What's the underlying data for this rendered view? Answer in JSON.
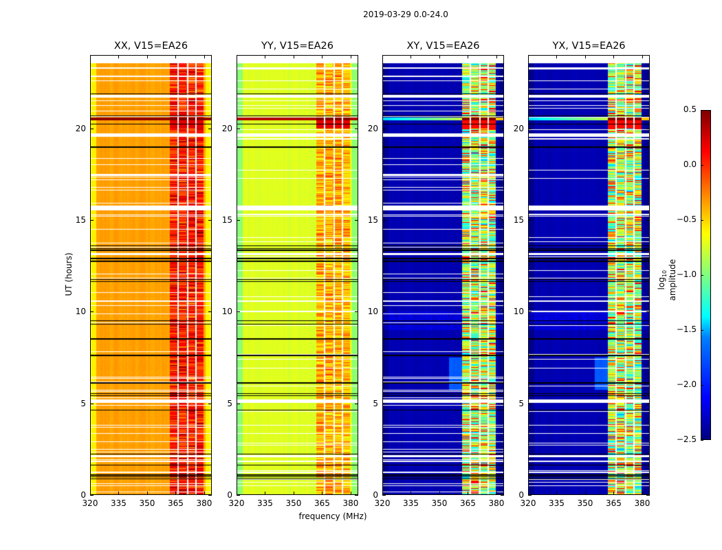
{
  "chart_data": {
    "type": "heatmap",
    "title": "2019-03-29 0.0-24.0",
    "xlabel": "frequency (MHz)",
    "ylabel": "UT (hours)",
    "xlim": [
      320,
      384
    ],
    "ylim": [
      0,
      24
    ],
    "xticks": [
      320,
      335,
      350,
      365,
      380
    ],
    "yticks": [
      0,
      5,
      10,
      15,
      20
    ],
    "panels": [
      {
        "title": "XX, V15=EA26",
        "background_level": -0.35,
        "band_level": 0.05
      },
      {
        "title": "YY, V15=EA26",
        "background_level": -0.72,
        "band_level": -0.4
      },
      {
        "title": "XY, V15=EA26",
        "background_level": -2.35,
        "band_level": -0.9
      },
      {
        "title": "YX, V15=EA26",
        "background_level": -2.35,
        "band_level": -0.9
      }
    ],
    "band_mhz": [
      362,
      380
    ],
    "band_gaps_mhz": [
      366.5,
      371.5,
      376
    ],
    "flagged_hours": [
      [
        23.6,
        24
      ],
      [
        23.3,
        23.35
      ],
      [
        22.6,
        22.65
      ],
      [
        21.7,
        21.85
      ],
      [
        21.5,
        21.55
      ],
      [
        19.55,
        19.75
      ],
      [
        15.55,
        15.8
      ],
      [
        15.2,
        15.25
      ],
      [
        13.1,
        13.2
      ],
      [
        11.8,
        11.85
      ],
      [
        10.55,
        10.6
      ],
      [
        5.0,
        5.2
      ],
      [
        3.75,
        3.8
      ],
      [
        3.3,
        3.35
      ],
      [
        2.05,
        2.15
      ],
      [
        1.75,
        1.85
      ],
      [
        1.15,
        1.25
      ],
      [
        0.45,
        0.5
      ]
    ],
    "black_line_hours": [
      21.9,
      20.7,
      20.25,
      19.0,
      13.6,
      13.45,
      13.35,
      12.9,
      12.75,
      11.75,
      11.65,
      9.5,
      9.3,
      8.5,
      7.6,
      6.1,
      5.5,
      5.4,
      4.6,
      2.2,
      1.6,
      1.05,
      0.95,
      0.85
    ],
    "colorbar": {
      "label": "log10 amplitude",
      "label_main": "log",
      "label_sub": "10",
      "label_rest": " amplitude",
      "range": [
        -2.5,
        0.5
      ],
      "colormap": "jet",
      "ticks": [
        "0.5",
        "0.0",
        "−0.5",
        "−1.0",
        "−1.5",
        "−2.0",
        "−2.5"
      ]
    }
  }
}
